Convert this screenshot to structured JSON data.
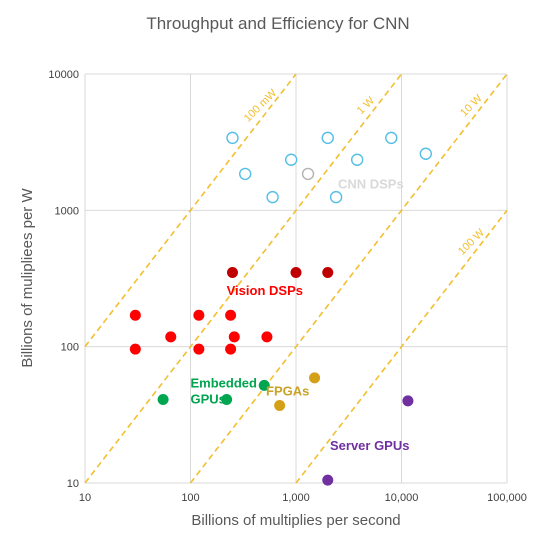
{
  "chart_data": {
    "type": "scatter",
    "title": "Throughput and Efficiency for CNN",
    "xlabel": "Billions of multiplies per second",
    "ylabel": "Billions of muliplieеs per W",
    "x_scale": "log",
    "y_scale": "log",
    "xlim": [
      10,
      100000
    ],
    "ylim": [
      10,
      10000
    ],
    "x_ticks": [
      "10",
      "100",
      "1,000",
      "10,000",
      "100,000"
    ],
    "y_ticks": [
      "10",
      "100",
      "1000",
      "10000"
    ],
    "grid": true,
    "power_lines": [
      {
        "label": "100 mW",
        "watts": 0.1,
        "color": "#f2bf2f",
        "label_color": "#f2bf2f"
      },
      {
        "label": "1 W",
        "watts": 1,
        "color": "#f2bf2f",
        "label_color": "#f2bf2f"
      },
      {
        "label": "10 W",
        "watts": 10,
        "color": "#f2bf2f",
        "label_color": "#f2bf2f"
      },
      {
        "label": "100 W",
        "watts": 100,
        "color": "#f2bf2f",
        "label_color": "#f2bf2f"
      }
    ],
    "groups": [
      {
        "label": "CNN DSPs",
        "color": "#dddddd",
        "label_color": "#d9d9d9",
        "points": [
          {
            "x": 250,
            "y": 3400,
            "color": "#55bfe6",
            "hollow": true
          },
          {
            "x": 2000,
            "y": 3400,
            "color": "#55bfe6",
            "hollow": true
          },
          {
            "x": 8000,
            "y": 3400,
            "color": "#55bfe6",
            "hollow": true
          },
          {
            "x": 900,
            "y": 2350,
            "color": "#55bfe6",
            "hollow": true
          },
          {
            "x": 3800,
            "y": 2350,
            "color": "#55bfe6",
            "hollow": true
          },
          {
            "x": 17000,
            "y": 2600,
            "color": "#55bfe6",
            "hollow": true
          },
          {
            "x": 330,
            "y": 1850,
            "color": "#55bfe6",
            "hollow": true
          },
          {
            "x": 1300,
            "y": 1850,
            "color": "#b3b3b3",
            "hollow": true
          },
          {
            "x": 600,
            "y": 1250,
            "color": "#55bfe6",
            "hollow": true
          },
          {
            "x": 2400,
            "y": 1250,
            "color": "#55bfe6",
            "hollow": true
          }
        ]
      },
      {
        "label": "Vision DSPs",
        "color": "#ff0000",
        "label_color": "#ff0000",
        "points": [
          {
            "x": 250,
            "y": 350,
            "color": "#c00000",
            "hollow": false
          },
          {
            "x": 1000,
            "y": 350,
            "color": "#c00000",
            "hollow": false
          },
          {
            "x": 2000,
            "y": 350,
            "color": "#c00000",
            "hollow": false
          },
          {
            "x": 30,
            "y": 170,
            "color": "#ff0000",
            "hollow": false
          },
          {
            "x": 120,
            "y": 170,
            "color": "#ff0000",
            "hollow": false
          },
          {
            "x": 240,
            "y": 170,
            "color": "#ff0000",
            "hollow": false
          },
          {
            "x": 65,
            "y": 118,
            "color": "#ff0000",
            "hollow": false
          },
          {
            "x": 260,
            "y": 118,
            "color": "#ff0000",
            "hollow": false
          },
          {
            "x": 530,
            "y": 118,
            "color": "#ff0000",
            "hollow": false
          },
          {
            "x": 30,
            "y": 96,
            "color": "#ff0000",
            "hollow": false
          },
          {
            "x": 120,
            "y": 96,
            "color": "#ff0000",
            "hollow": false
          },
          {
            "x": 240,
            "y": 96,
            "color": "#ff0000",
            "hollow": false
          }
        ]
      },
      {
        "label": "Embedded GPUs",
        "color": "#00a550",
        "label_color": "#00a550",
        "points": [
          {
            "x": 55,
            "y": 41,
            "color": "#00a550",
            "hollow": false
          },
          {
            "x": 220,
            "y": 41,
            "color": "#00a550",
            "hollow": false
          },
          {
            "x": 500,
            "y": 52,
            "color": "#00a550",
            "hollow": false
          }
        ]
      },
      {
        "label": "FPGAs",
        "color": "#d4a017",
        "label_color": "#c9a227",
        "points": [
          {
            "x": 1500,
            "y": 59,
            "color": "#d4a017",
            "hollow": false
          },
          {
            "x": 700,
            "y": 37,
            "color": "#d4a017",
            "hollow": false
          }
        ]
      },
      {
        "label": "Server GPUs",
        "color": "#7030a0",
        "label_color": "#7030a0",
        "points": [
          {
            "x": 11500,
            "y": 40,
            "color": "#7030a0",
            "hollow": false
          },
          {
            "x": 2000,
            "y": 10.5,
            "color": "#7030a0",
            "hollow": false
          }
        ]
      }
    ]
  }
}
